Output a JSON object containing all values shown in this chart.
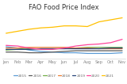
{
  "title": "FAO Food Price Index",
  "months": [
    "Jan",
    "Feb",
    "Mar",
    "Apr",
    "May",
    "Jun",
    "Jul",
    "Aug",
    "Sep",
    "Oct",
    "Nov"
  ],
  "years": [
    "2015",
    "2016",
    "2017",
    "2018",
    "2019",
    "2020",
    "2021"
  ],
  "colors": [
    "#5b9bd5",
    "#595959",
    "#70ad47",
    "#ed7d31",
    "#264478",
    "#ff4499",
    "#ffc000"
  ],
  "series": {
    "2015": [
      93,
      91,
      88,
      86,
      85,
      84,
      84,
      83,
      83,
      83,
      84
    ],
    "2016": [
      85,
      85,
      84,
      84,
      85,
      86,
      87,
      87,
      87,
      87,
      87
    ],
    "2017": [
      88,
      89,
      90,
      90,
      90,
      90,
      91,
      92,
      92,
      92,
      92
    ],
    "2018": [
      91,
      91,
      92,
      92,
      92,
      92,
      91,
      91,
      90,
      90,
      90
    ],
    "2019": [
      89,
      89,
      89,
      90,
      90,
      90,
      90,
      90,
      90,
      91,
      91
    ],
    "2020": [
      95,
      94,
      91,
      89,
      89,
      91,
      94,
      96,
      97,
      99,
      104
    ],
    "2021": [
      113,
      116,
      119,
      121,
      122,
      124,
      124,
      123,
      130,
      133,
      136
    ]
  },
  "background_color": "#ffffff",
  "title_fontsize": 6.0,
  "tick_fontsize": 3.8,
  "legend_fontsize": 3.2,
  "ylim": [
    75,
    145
  ],
  "linewidth": 0.9
}
